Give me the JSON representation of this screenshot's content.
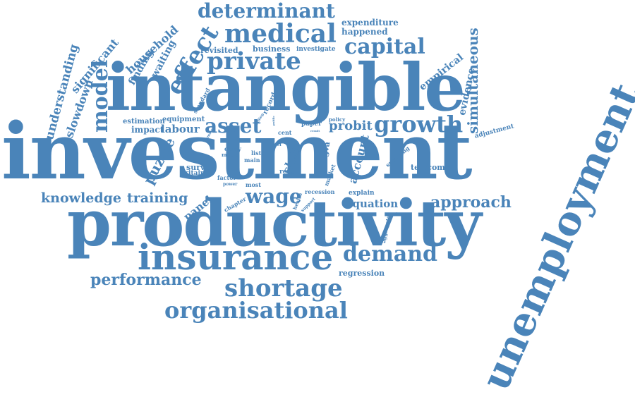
{
  "colors": {
    "word": "#4a84b9",
    "background": "#ffffff"
  },
  "words": {
    "investment": "investment",
    "intangible": "intangible",
    "productivity": "productivity",
    "unemployment": "unemployment",
    "insurance": "insurance",
    "private": "private",
    "medical": "medical",
    "determinant": "determinant",
    "capital": "capital",
    "growth": "growth",
    "shortage": "shortage",
    "organisational": "organisational",
    "demand": "demand",
    "performance": "performance",
    "asset": "asset",
    "wage": "wage",
    "effect": "effect",
    "model": "model",
    "knowledge": "knowledge",
    "training": "training",
    "approach": "approach",
    "simultaneous": "simultaneous",
    "probit": "probit",
    "labour": "labour",
    "puzzle": "puzzle",
    "skill": "skill",
    "account": "account",
    "equation": "equation",
    "panel": "panel",
    "understanding": "understanding",
    "slowdown": "slowdown",
    "significant": "significant",
    "household": "household",
    "finding": "finding",
    "waiting": "waiting",
    "empirical": "empirical",
    "evidence": "evidence",
    "expenditure": "expenditure",
    "happened": "happened",
    "business": "business",
    "investigate": "investigate",
    "revisited": "revisited",
    "impact": "impact",
    "estimation": "estimation",
    "equipment": "equipment",
    "standard": "standard",
    "record": "record",
    "paper": "paper",
    "policy": "policy",
    "cent": "cent",
    "adjustment": "adjustment",
    "survey": "survey",
    "britain": "britain",
    "essay": "essay",
    "macro": "macro",
    "main": "main",
    "list": "list",
    "level": "level",
    "real": "real",
    "factor": "factor",
    "most": "most",
    "chapter": "chapter",
    "power": "power",
    "telecoms": "telecoms",
    "spending": "spending",
    "mgva": "mgva",
    "market": "market",
    "recession": "recession",
    "explain": "explain",
    "health": "health",
    "support": "support",
    "regression": "regression",
    "aggregate": "aggregate",
    "falling": "falling",
    "result": "result",
    "remain": "remain",
    "public": "public",
    "major": "major",
    "sector": "sector"
  }
}
